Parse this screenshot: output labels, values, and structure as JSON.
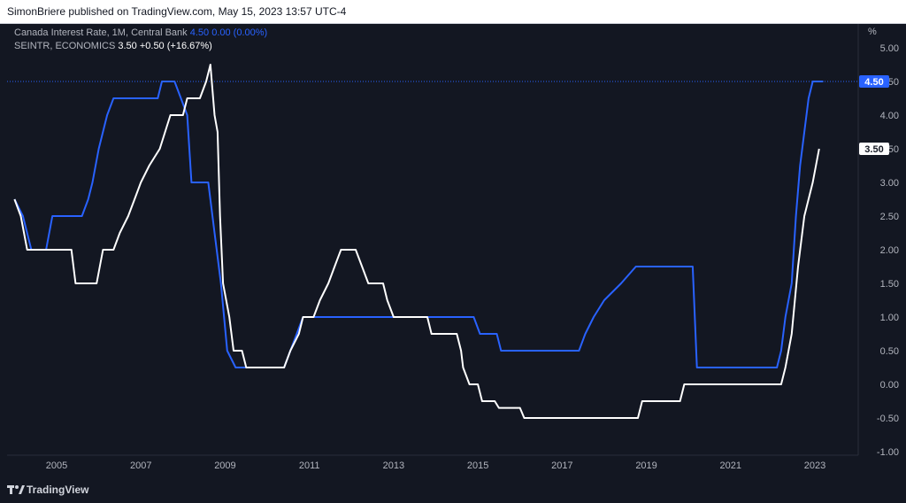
{
  "header": {
    "publish_text": "SimonBriere published on TradingView.com, May 15, 2023 13:57 UTC-4"
  },
  "footer": {
    "brand": "TradingView",
    "logo_icon": "tradingview-logo-icon"
  },
  "legend": {
    "series1": {
      "name": "Canada Interest Rate, 1M, Central Bank",
      "last": "4.50",
      "change": "0.00 (0.00%)"
    },
    "series2": {
      "name": "SEINTR, ECONOMICS",
      "last": "3.50",
      "change": "+0.50 (+16.67%)"
    }
  },
  "colors": {
    "background": "#131722",
    "blue": "#2962ff",
    "white": "#ffffff",
    "axis_text": "#b2b5be"
  },
  "chart_data": {
    "type": "line",
    "ylabel": "%",
    "ylim": [
      -1.0,
      5.0
    ],
    "xlim": [
      2004.0,
      2024.0
    ],
    "yticks": [
      "5.00",
      "4.50",
      "4.00",
      "3.50",
      "3.00",
      "2.50",
      "2.00",
      "1.50",
      "1.00",
      "0.50",
      "0.00",
      "-0.50",
      "-1.00"
    ],
    "xticks": [
      "2005",
      "2007",
      "2009",
      "2011",
      "2013",
      "2015",
      "2017",
      "2019",
      "2021",
      "2023"
    ],
    "series": [
      {
        "name": "Canada Interest Rate, 1M, Central Bank",
        "color": "#2962ff",
        "last_label": "4.50",
        "points": [
          [
            2004.0,
            2.75
          ],
          [
            2004.2,
            2.5
          ],
          [
            2004.4,
            2.0
          ],
          [
            2004.75,
            2.0
          ],
          [
            2004.9,
            2.5
          ],
          [
            2005.6,
            2.5
          ],
          [
            2005.75,
            2.75
          ],
          [
            2005.85,
            3.0
          ],
          [
            2006.0,
            3.5
          ],
          [
            2006.2,
            4.0
          ],
          [
            2006.35,
            4.25
          ],
          [
            2007.4,
            4.25
          ],
          [
            2007.5,
            4.5
          ],
          [
            2007.8,
            4.5
          ],
          [
            2007.95,
            4.25
          ],
          [
            2008.1,
            4.0
          ],
          [
            2008.2,
            3.0
          ],
          [
            2008.6,
            3.0
          ],
          [
            2008.75,
            2.25
          ],
          [
            2008.9,
            1.5
          ],
          [
            2009.05,
            0.5
          ],
          [
            2009.25,
            0.25
          ],
          [
            2010.4,
            0.25
          ],
          [
            2010.55,
            0.5
          ],
          [
            2010.7,
            0.75
          ],
          [
            2010.85,
            1.0
          ],
          [
            2014.9,
            1.0
          ],
          [
            2015.05,
            0.75
          ],
          [
            2015.45,
            0.75
          ],
          [
            2015.55,
            0.5
          ],
          [
            2017.4,
            0.5
          ],
          [
            2017.55,
            0.75
          ],
          [
            2017.75,
            1.0
          ],
          [
            2018.0,
            1.25
          ],
          [
            2018.4,
            1.5
          ],
          [
            2018.75,
            1.75
          ],
          [
            2020.1,
            1.75
          ],
          [
            2020.2,
            0.25
          ],
          [
            2022.1,
            0.25
          ],
          [
            2022.2,
            0.5
          ],
          [
            2022.3,
            1.0
          ],
          [
            2022.45,
            1.5
          ],
          [
            2022.55,
            2.5
          ],
          [
            2022.65,
            3.25
          ],
          [
            2022.75,
            3.75
          ],
          [
            2022.85,
            4.25
          ],
          [
            2022.95,
            4.5
          ],
          [
            2023.2,
            4.5
          ]
        ]
      },
      {
        "name": "SEINTR, ECONOMICS",
        "color": "#ffffff",
        "last_label": "3.50",
        "points": [
          [
            2004.0,
            2.75
          ],
          [
            2004.15,
            2.5
          ],
          [
            2004.3,
            2.0
          ],
          [
            2005.35,
            2.0
          ],
          [
            2005.45,
            1.5
          ],
          [
            2005.95,
            1.5
          ],
          [
            2006.1,
            2.0
          ],
          [
            2006.35,
            2.0
          ],
          [
            2006.5,
            2.25
          ],
          [
            2006.7,
            2.5
          ],
          [
            2006.85,
            2.75
          ],
          [
            2007.0,
            3.0
          ],
          [
            2007.2,
            3.25
          ],
          [
            2007.45,
            3.5
          ],
          [
            2007.7,
            4.0
          ],
          [
            2008.0,
            4.0
          ],
          [
            2008.1,
            4.25
          ],
          [
            2008.4,
            4.25
          ],
          [
            2008.55,
            4.5
          ],
          [
            2008.65,
            4.75
          ],
          [
            2008.75,
            4.0
          ],
          [
            2008.82,
            3.75
          ],
          [
            2008.88,
            2.5
          ],
          [
            2008.95,
            1.5
          ],
          [
            2009.1,
            1.0
          ],
          [
            2009.2,
            0.5
          ],
          [
            2009.4,
            0.5
          ],
          [
            2009.5,
            0.25
          ],
          [
            2010.4,
            0.25
          ],
          [
            2010.55,
            0.5
          ],
          [
            2010.75,
            0.75
          ],
          [
            2010.85,
            1.0
          ],
          [
            2011.1,
            1.0
          ],
          [
            2011.25,
            1.25
          ],
          [
            2011.45,
            1.5
          ],
          [
            2011.6,
            1.75
          ],
          [
            2011.75,
            2.0
          ],
          [
            2012.1,
            2.0
          ],
          [
            2012.25,
            1.75
          ],
          [
            2012.4,
            1.5
          ],
          [
            2012.75,
            1.5
          ],
          [
            2012.85,
            1.25
          ],
          [
            2013.0,
            1.0
          ],
          [
            2013.8,
            1.0
          ],
          [
            2013.9,
            0.75
          ],
          [
            2014.5,
            0.75
          ],
          [
            2014.6,
            0.5
          ],
          [
            2014.65,
            0.25
          ],
          [
            2014.8,
            0.0
          ],
          [
            2015.0,
            0.0
          ],
          [
            2015.1,
            -0.25
          ],
          [
            2015.4,
            -0.25
          ],
          [
            2015.5,
            -0.35
          ],
          [
            2016.0,
            -0.35
          ],
          [
            2016.1,
            -0.5
          ],
          [
            2018.8,
            -0.5
          ],
          [
            2018.9,
            -0.25
          ],
          [
            2019.8,
            -0.25
          ],
          [
            2019.9,
            0.0
          ],
          [
            2022.2,
            0.0
          ],
          [
            2022.3,
            0.25
          ],
          [
            2022.45,
            0.75
          ],
          [
            2022.6,
            1.75
          ],
          [
            2022.75,
            2.5
          ],
          [
            2022.95,
            3.0
          ],
          [
            2023.1,
            3.5
          ]
        ]
      }
    ],
    "reference_line": 4.5
  }
}
